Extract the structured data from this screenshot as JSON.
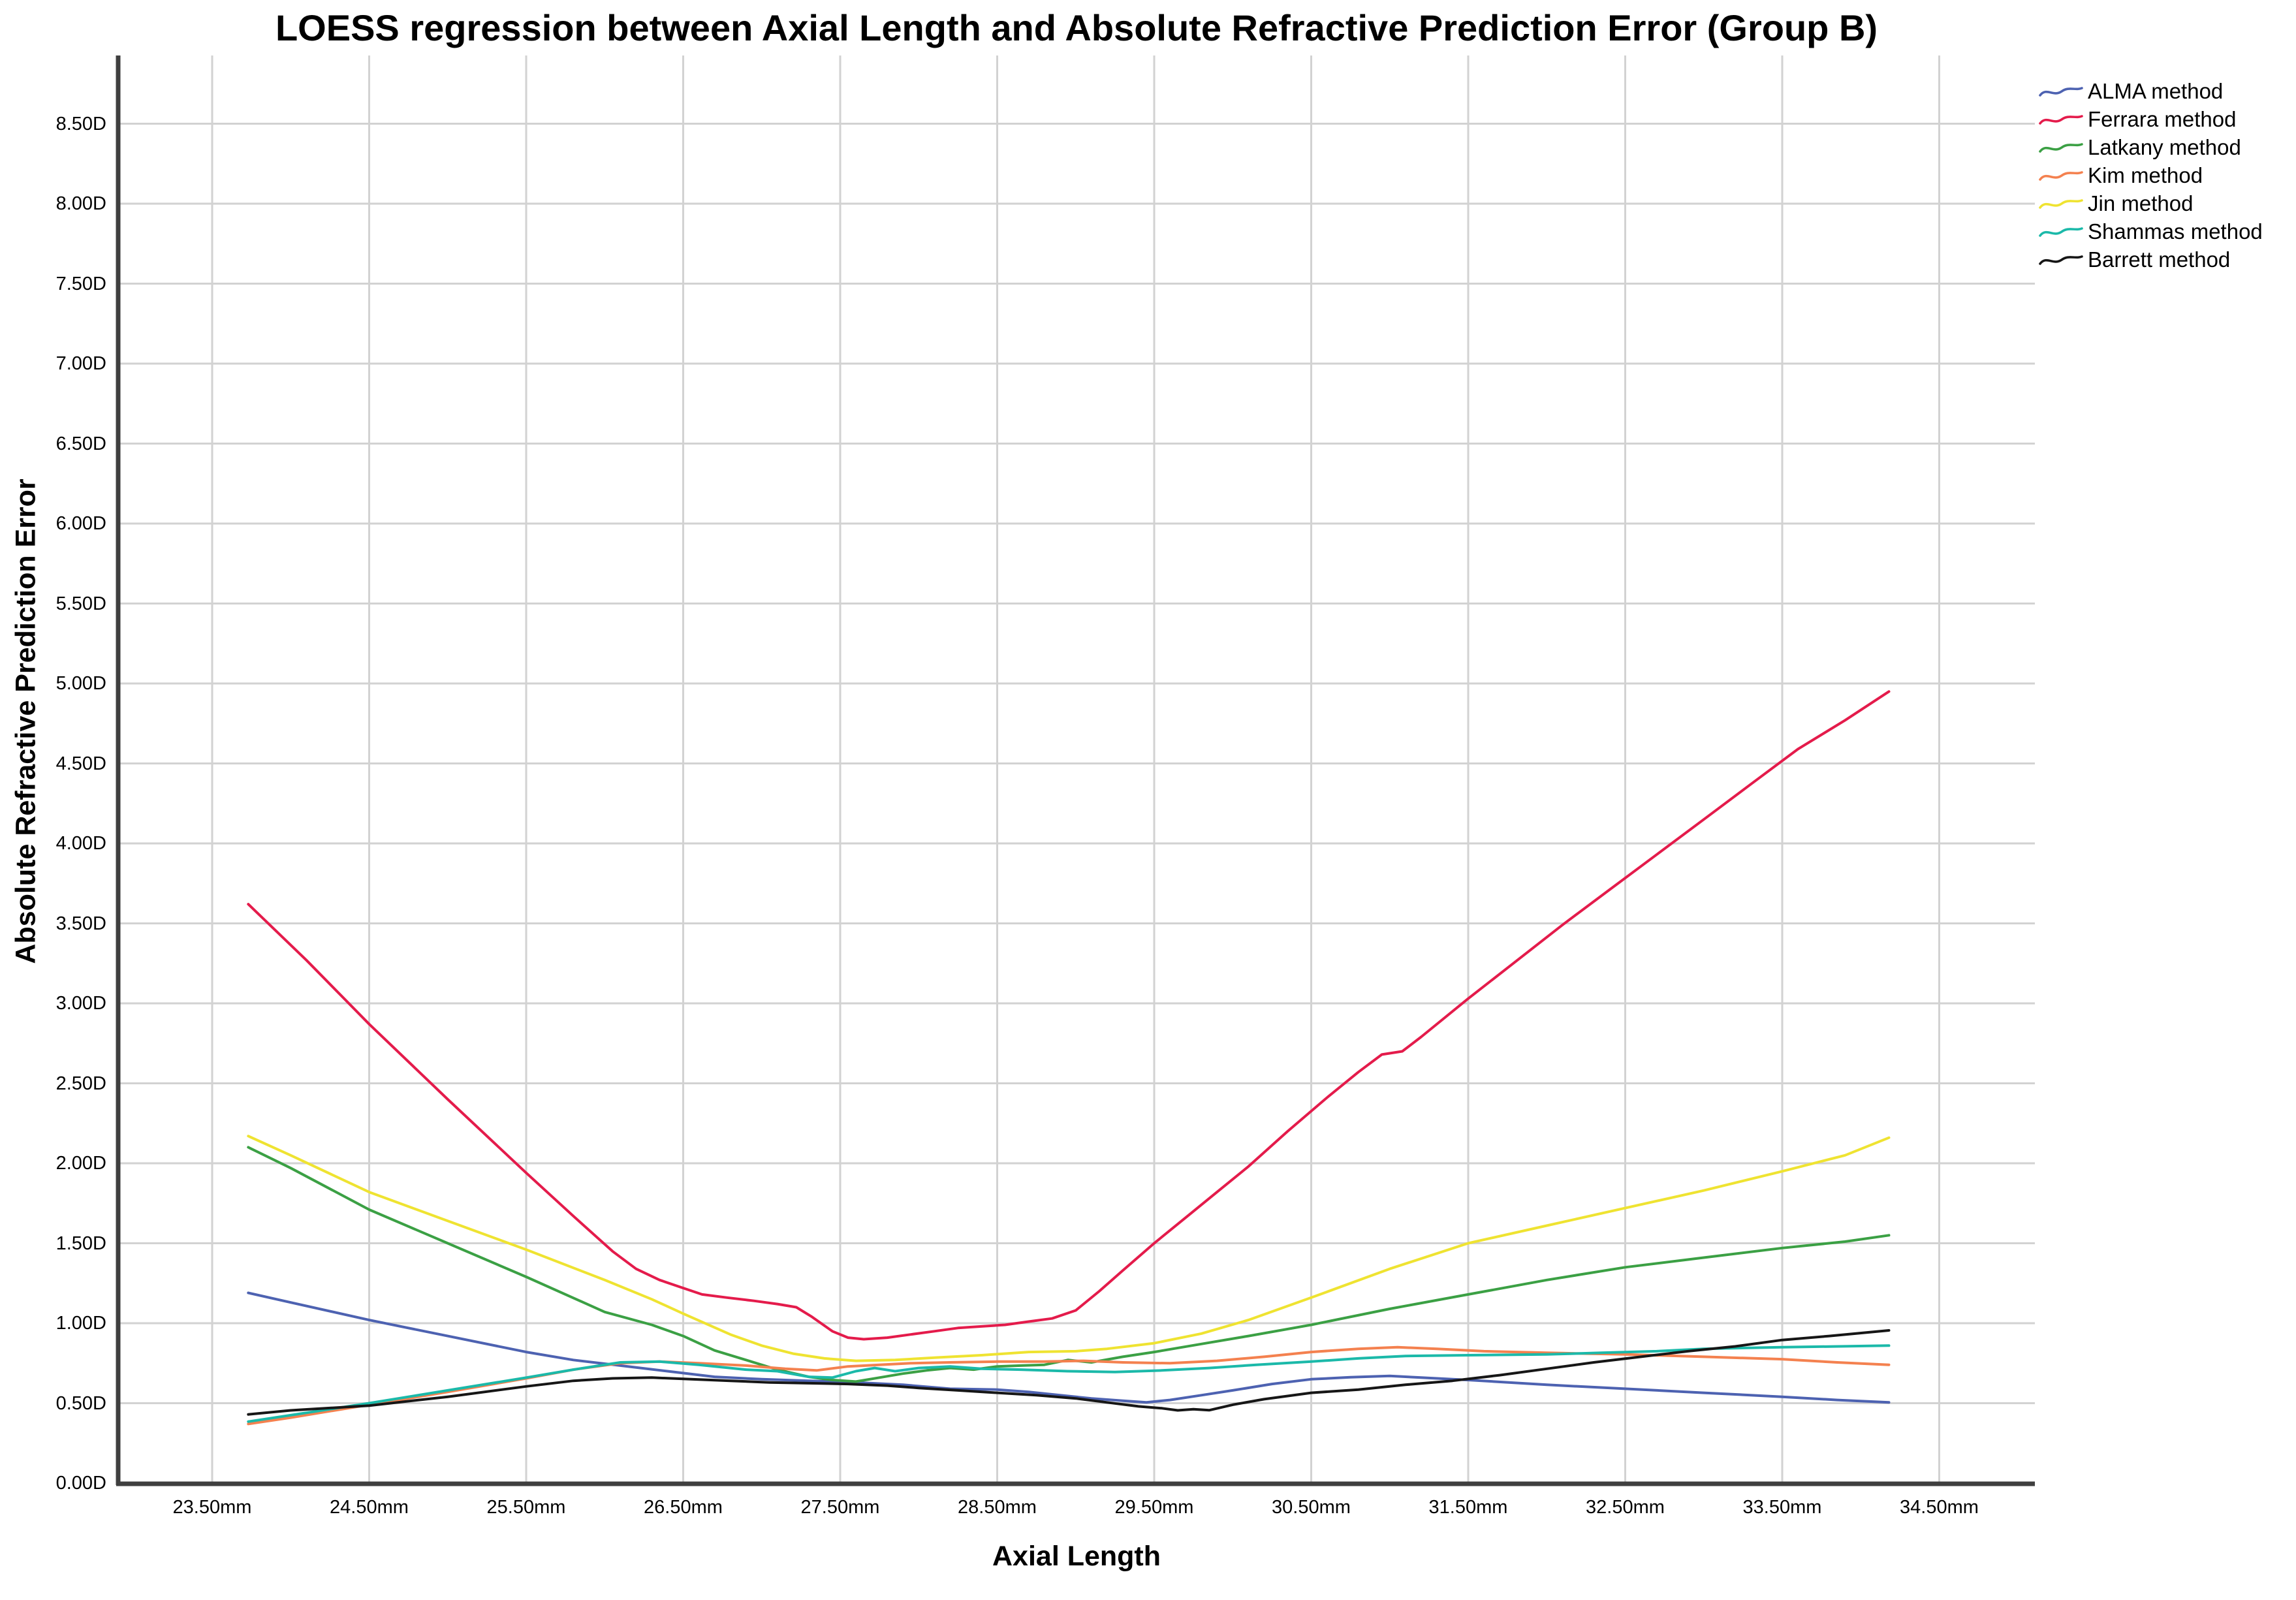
{
  "chart_data": {
    "type": "line",
    "title": "LOESS regression between Axial Length and Absolute Refractive Prediction Error (Group B)",
    "xlabel": "Axial Length",
    "ylabel": "Absolute Refractive Prediction Error",
    "x_unit": "mm",
    "y_unit": "D",
    "xlim": [
      22.9,
      35.05
    ],
    "ylim": [
      0,
      8.93
    ],
    "grid": true,
    "legend_position": "top-right",
    "x_tick_values": [
      23.5,
      24.5,
      25.5,
      26.5,
      27.5,
      28.5,
      29.5,
      30.5,
      31.5,
      32.5,
      33.5,
      34.5
    ],
    "x_tick_labels": [
      "23.50mm",
      "24.50mm",
      "25.50mm",
      "26.50mm",
      "27.50mm",
      "28.50mm",
      "29.50mm",
      "30.50mm",
      "31.50mm",
      "32.50mm",
      "33.50mm",
      "34.50mm"
    ],
    "y_tick_values": [
      0,
      0.5,
      1,
      1.5,
      2,
      2.5,
      3,
      3.5,
      4,
      4.5,
      5,
      5.5,
      6,
      6.5,
      7,
      7.5,
      8,
      8.5
    ],
    "y_tick_labels": [
      "0.00D",
      "0.50D",
      "1.00D",
      "1.50D",
      "2.00D",
      "2.50D",
      "3.00D",
      "3.50D",
      "4.00D",
      "4.50D",
      "5.00D",
      "5.50D",
      "6.00D",
      "6.50D",
      "7.00D",
      "7.50D",
      "8.00D",
      "8.50D"
    ],
    "series": [
      {
        "name": "ALMA method",
        "color": "#4D62B1",
        "points": [
          [
            23.73,
            1.19
          ],
          [
            24.0,
            1.13
          ],
          [
            24.5,
            1.02
          ],
          [
            25.0,
            0.92
          ],
          [
            25.5,
            0.82
          ],
          [
            25.8,
            0.77
          ],
          [
            26.1,
            0.735
          ],
          [
            26.4,
            0.7
          ],
          [
            26.7,
            0.665
          ],
          [
            27.0,
            0.65
          ],
          [
            27.3,
            0.64
          ],
          [
            27.6,
            0.63
          ],
          [
            27.9,
            0.615
          ],
          [
            28.2,
            0.59
          ],
          [
            28.5,
            0.585
          ],
          [
            28.7,
            0.57
          ],
          [
            28.9,
            0.55
          ],
          [
            29.1,
            0.53
          ],
          [
            29.3,
            0.515
          ],
          [
            29.45,
            0.505
          ],
          [
            29.6,
            0.52
          ],
          [
            29.8,
            0.55
          ],
          [
            30.0,
            0.58
          ],
          [
            30.25,
            0.62
          ],
          [
            30.5,
            0.65
          ],
          [
            30.75,
            0.662
          ],
          [
            31.0,
            0.67
          ],
          [
            31.2,
            0.66
          ],
          [
            31.5,
            0.645
          ],
          [
            32.0,
            0.615
          ],
          [
            32.5,
            0.59
          ],
          [
            33.0,
            0.565
          ],
          [
            33.5,
            0.54
          ],
          [
            33.85,
            0.52
          ],
          [
            34.18,
            0.505
          ]
        ]
      },
      {
        "name": "Ferrara method",
        "color": "#E41B4B",
        "points": [
          [
            23.73,
            3.62
          ],
          [
            24.1,
            3.27
          ],
          [
            24.5,
            2.87
          ],
          [
            25.0,
            2.4
          ],
          [
            25.5,
            1.94
          ],
          [
            25.8,
            1.67
          ],
          [
            26.05,
            1.45
          ],
          [
            26.2,
            1.34
          ],
          [
            26.35,
            1.27
          ],
          [
            26.5,
            1.22
          ],
          [
            26.62,
            1.18
          ],
          [
            26.78,
            1.16
          ],
          [
            26.95,
            1.14
          ],
          [
            27.1,
            1.12
          ],
          [
            27.22,
            1.1
          ],
          [
            27.32,
            1.04
          ],
          [
            27.45,
            0.95
          ],
          [
            27.55,
            0.91
          ],
          [
            27.65,
            0.9
          ],
          [
            27.8,
            0.91
          ],
          [
            27.95,
            0.93
          ],
          [
            28.1,
            0.95
          ],
          [
            28.25,
            0.97
          ],
          [
            28.4,
            0.98
          ],
          [
            28.55,
            0.99
          ],
          [
            28.7,
            1.01
          ],
          [
            28.85,
            1.03
          ],
          [
            29.0,
            1.08
          ],
          [
            29.15,
            1.2
          ],
          [
            29.3,
            1.33
          ],
          [
            29.5,
            1.5
          ],
          [
            29.7,
            1.66
          ],
          [
            29.9,
            1.82
          ],
          [
            30.1,
            1.98
          ],
          [
            30.35,
            2.2
          ],
          [
            30.6,
            2.41
          ],
          [
            30.8,
            2.57
          ],
          [
            30.95,
            2.68
          ],
          [
            31.08,
            2.7
          ],
          [
            31.2,
            2.79
          ],
          [
            31.5,
            3.03
          ],
          [
            31.8,
            3.26
          ],
          [
            32.1,
            3.49
          ],
          [
            32.4,
            3.71
          ],
          [
            32.7,
            3.93
          ],
          [
            33.0,
            4.15
          ],
          [
            33.3,
            4.37
          ],
          [
            33.6,
            4.59
          ],
          [
            33.9,
            4.77
          ],
          [
            34.18,
            4.95
          ]
        ]
      },
      {
        "name": "Latkany method",
        "color": "#3BA044",
        "points": [
          [
            23.73,
            2.1
          ],
          [
            24.0,
            1.97
          ],
          [
            24.5,
            1.71
          ],
          [
            25.0,
            1.5
          ],
          [
            25.5,
            1.29
          ],
          [
            26.0,
            1.07
          ],
          [
            26.3,
            0.99
          ],
          [
            26.5,
            0.92
          ],
          [
            26.7,
            0.83
          ],
          [
            26.9,
            0.77
          ],
          [
            27.1,
            0.71
          ],
          [
            27.3,
            0.665
          ],
          [
            27.45,
            0.645
          ],
          [
            27.6,
            0.635
          ],
          [
            27.75,
            0.66
          ],
          [
            27.9,
            0.685
          ],
          [
            28.05,
            0.705
          ],
          [
            28.2,
            0.72
          ],
          [
            28.35,
            0.71
          ],
          [
            28.5,
            0.73
          ],
          [
            28.65,
            0.735
          ],
          [
            28.8,
            0.74
          ],
          [
            28.95,
            0.77
          ],
          [
            29.1,
            0.755
          ],
          [
            29.3,
            0.79
          ],
          [
            29.5,
            0.82
          ],
          [
            29.8,
            0.87
          ],
          [
            30.1,
            0.92
          ],
          [
            30.5,
            0.99
          ],
          [
            31.0,
            1.09
          ],
          [
            31.5,
            1.18
          ],
          [
            32.0,
            1.27
          ],
          [
            32.5,
            1.35
          ],
          [
            33.0,
            1.41
          ],
          [
            33.5,
            1.47
          ],
          [
            33.9,
            1.51
          ],
          [
            34.18,
            1.55
          ]
        ]
      },
      {
        "name": "Kim method",
        "color": "#F4814F",
        "points": [
          [
            23.73,
            0.37
          ],
          [
            24.0,
            0.41
          ],
          [
            24.5,
            0.49
          ],
          [
            25.0,
            0.57
          ],
          [
            25.5,
            0.655
          ],
          [
            25.8,
            0.71
          ],
          [
            26.1,
            0.75
          ],
          [
            26.35,
            0.76
          ],
          [
            26.6,
            0.75
          ],
          [
            26.9,
            0.735
          ],
          [
            27.15,
            0.715
          ],
          [
            27.35,
            0.705
          ],
          [
            27.55,
            0.73
          ],
          [
            27.75,
            0.74
          ],
          [
            27.95,
            0.75
          ],
          [
            28.2,
            0.755
          ],
          [
            28.5,
            0.76
          ],
          [
            28.8,
            0.76
          ],
          [
            29.05,
            0.765
          ],
          [
            29.3,
            0.755
          ],
          [
            29.6,
            0.75
          ],
          [
            29.9,
            0.765
          ],
          [
            30.2,
            0.79
          ],
          [
            30.5,
            0.82
          ],
          [
            30.8,
            0.84
          ],
          [
            31.05,
            0.85
          ],
          [
            31.3,
            0.84
          ],
          [
            31.6,
            0.825
          ],
          [
            32.0,
            0.815
          ],
          [
            32.5,
            0.805
          ],
          [
            33.0,
            0.79
          ],
          [
            33.5,
            0.775
          ],
          [
            33.85,
            0.755
          ],
          [
            34.18,
            0.74
          ]
        ]
      },
      {
        "name": "Jin method",
        "color": "#EFE331",
        "points": [
          [
            23.73,
            2.17
          ],
          [
            24.0,
            2.05
          ],
          [
            24.5,
            1.82
          ],
          [
            25.0,
            1.64
          ],
          [
            25.5,
            1.46
          ],
          [
            26.0,
            1.27
          ],
          [
            26.3,
            1.15
          ],
          [
            26.5,
            1.06
          ],
          [
            26.8,
            0.93
          ],
          [
            27.0,
            0.86
          ],
          [
            27.2,
            0.81
          ],
          [
            27.4,
            0.78
          ],
          [
            27.6,
            0.765
          ],
          [
            27.85,
            0.77
          ],
          [
            28.1,
            0.785
          ],
          [
            28.4,
            0.8
          ],
          [
            28.7,
            0.82
          ],
          [
            29.0,
            0.825
          ],
          [
            29.2,
            0.84
          ],
          [
            29.5,
            0.875
          ],
          [
            29.8,
            0.935
          ],
          [
            30.1,
            1.02
          ],
          [
            30.5,
            1.16
          ],
          [
            31.0,
            1.34
          ],
          [
            31.5,
            1.5
          ],
          [
            32.0,
            1.61
          ],
          [
            32.5,
            1.72
          ],
          [
            33.0,
            1.83
          ],
          [
            33.5,
            1.95
          ],
          [
            33.9,
            2.05
          ],
          [
            34.18,
            2.16
          ]
        ]
      },
      {
        "name": "Shammas method",
        "color": "#1BB9A9",
        "points": [
          [
            23.73,
            0.385
          ],
          [
            24.0,
            0.425
          ],
          [
            24.5,
            0.5
          ],
          [
            25.0,
            0.58
          ],
          [
            25.5,
            0.66
          ],
          [
            25.8,
            0.71
          ],
          [
            26.1,
            0.755
          ],
          [
            26.35,
            0.76
          ],
          [
            26.6,
            0.74
          ],
          [
            26.9,
            0.71
          ],
          [
            27.1,
            0.7
          ],
          [
            27.3,
            0.665
          ],
          [
            27.45,
            0.66
          ],
          [
            27.6,
            0.7
          ],
          [
            27.72,
            0.72
          ],
          [
            27.85,
            0.7
          ],
          [
            28.0,
            0.72
          ],
          [
            28.2,
            0.73
          ],
          [
            28.4,
            0.715
          ],
          [
            28.65,
            0.71
          ],
          [
            28.95,
            0.7
          ],
          [
            29.25,
            0.695
          ],
          [
            29.55,
            0.705
          ],
          [
            29.85,
            0.72
          ],
          [
            30.15,
            0.74
          ],
          [
            30.5,
            0.76
          ],
          [
            30.8,
            0.78
          ],
          [
            31.1,
            0.795
          ],
          [
            31.5,
            0.8
          ],
          [
            32.0,
            0.805
          ],
          [
            32.35,
            0.815
          ],
          [
            32.7,
            0.825
          ],
          [
            33.0,
            0.84
          ],
          [
            33.5,
            0.85
          ],
          [
            34.18,
            0.86
          ]
        ]
      },
      {
        "name": "Barrett method",
        "color": "#161616",
        "points": [
          [
            23.73,
            0.43
          ],
          [
            24.0,
            0.455
          ],
          [
            24.5,
            0.485
          ],
          [
            25.0,
            0.54
          ],
          [
            25.5,
            0.605
          ],
          [
            25.8,
            0.64
          ],
          [
            26.05,
            0.655
          ],
          [
            26.3,
            0.66
          ],
          [
            26.55,
            0.65
          ],
          [
            26.8,
            0.64
          ],
          [
            27.05,
            0.63
          ],
          [
            27.3,
            0.625
          ],
          [
            27.55,
            0.62
          ],
          [
            27.8,
            0.61
          ],
          [
            28.0,
            0.595
          ],
          [
            28.25,
            0.58
          ],
          [
            28.5,
            0.565
          ],
          [
            28.75,
            0.55
          ],
          [
            29.0,
            0.53
          ],
          [
            29.2,
            0.505
          ],
          [
            29.4,
            0.48
          ],
          [
            29.55,
            0.468
          ],
          [
            29.65,
            0.455
          ],
          [
            29.75,
            0.462
          ],
          [
            29.85,
            0.456
          ],
          [
            30.0,
            0.49
          ],
          [
            30.2,
            0.525
          ],
          [
            30.5,
            0.565
          ],
          [
            30.8,
            0.585
          ],
          [
            31.1,
            0.615
          ],
          [
            31.4,
            0.64
          ],
          [
            31.7,
            0.675
          ],
          [
            32.0,
            0.715
          ],
          [
            32.3,
            0.755
          ],
          [
            32.6,
            0.79
          ],
          [
            32.9,
            0.825
          ],
          [
            33.2,
            0.855
          ],
          [
            33.5,
            0.895
          ],
          [
            33.8,
            0.92
          ],
          [
            34.18,
            0.955
          ]
        ]
      }
    ]
  }
}
